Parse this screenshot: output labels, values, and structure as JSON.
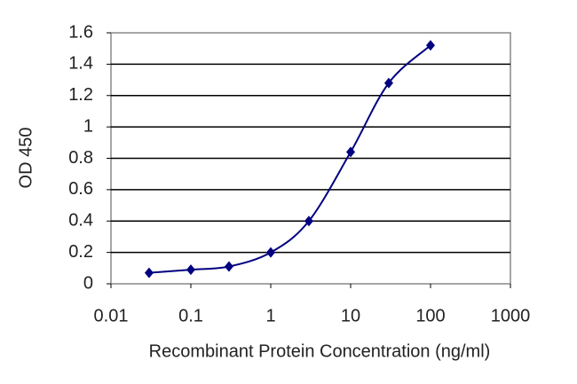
{
  "chart_data": {
    "type": "line",
    "xlabel": "Recombinant Protein Concentration (ng/ml)",
    "ylabel": "OD 450",
    "x": [
      0.03,
      0.1,
      0.3,
      1,
      3,
      10,
      30,
      100
    ],
    "values": [
      0.07,
      0.09,
      0.11,
      0.2,
      0.4,
      0.84,
      1.28,
      1.52
    ],
    "color": "#000080",
    "marker": "diamond",
    "xscale": "log",
    "xlim": [
      0.01,
      1000
    ],
    "xticks": [
      0.01,
      0.1,
      1,
      10,
      100,
      1000
    ],
    "ylim": [
      0,
      1.6
    ],
    "yticks": [
      0,
      0.2,
      0.4,
      0.6,
      0.8,
      1,
      1.2,
      1.4,
      1.6
    ],
    "grid": true
  }
}
